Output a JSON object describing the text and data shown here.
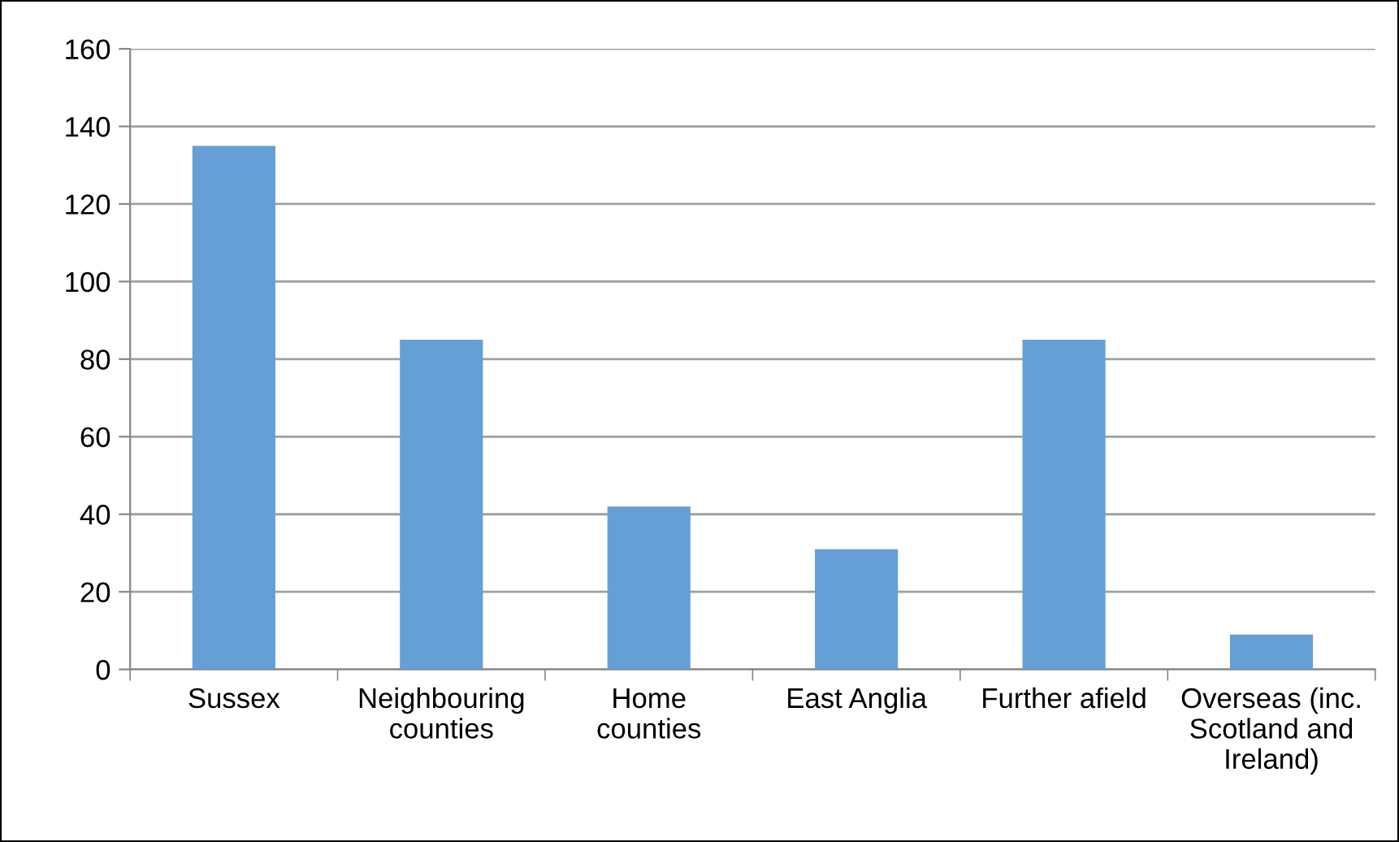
{
  "chart_data": {
    "type": "bar",
    "categories": [
      "Sussex",
      "Neighbouring\ncounties",
      "Home\ncounties",
      "East Anglia",
      "Further afield",
      "Overseas (inc.\nScotland and\nIreland)"
    ],
    "values": [
      135,
      85,
      42,
      31,
      85,
      9
    ],
    "color": "#659fd6",
    "ylim": [
      0,
      160
    ],
    "yticks": [
      0,
      20,
      40,
      60,
      80,
      100,
      120,
      140,
      160
    ],
    "grid": "y",
    "legend": false
  }
}
